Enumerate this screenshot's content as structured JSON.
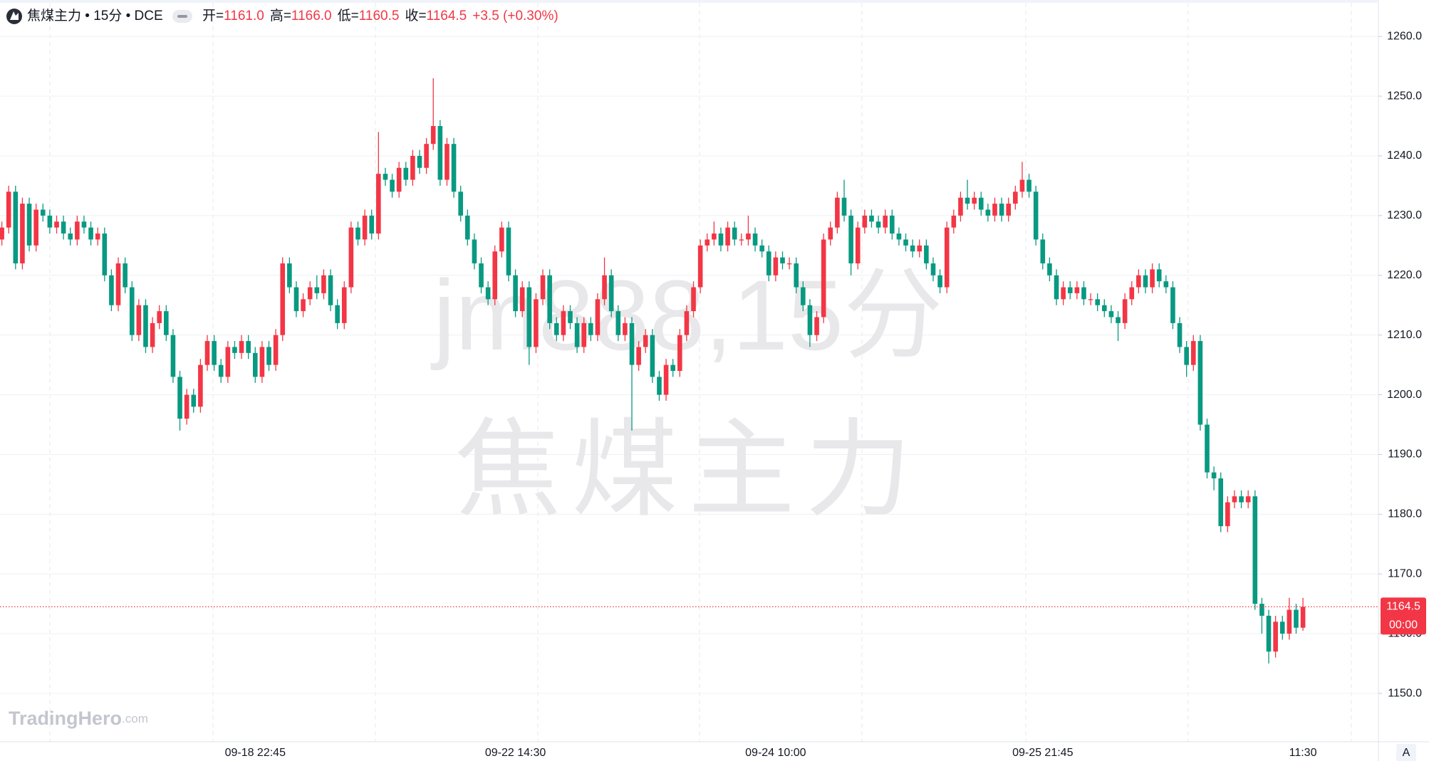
{
  "header": {
    "title": "焦煤主力 • 15分 • DCE",
    "open_label": "开=",
    "open": "1161.0",
    "high_label": "高=",
    "high": "1166.0",
    "low_label": "低=",
    "low": "1160.5",
    "close_label": "收=",
    "close": "1164.5",
    "change": "+3.5 (+0.30%)"
  },
  "watermark": {
    "symbol": "jm888,15分",
    "name": "焦煤主力"
  },
  "brand": {
    "name": "TradingHero",
    "suffix": ".com"
  },
  "scale_button": "A",
  "chart_data": {
    "type": "candlestick",
    "up_color": "#f23645",
    "down_color": "#089981",
    "grid": true,
    "categories": [
      null,
      null,
      null,
      null,
      null,
      null,
      null,
      null,
      null,
      null,
      null,
      null,
      null,
      null,
      null,
      null,
      null,
      null,
      null,
      null,
      null,
      null,
      null,
      null,
      null,
      null,
      null,
      null,
      null,
      null,
      null,
      null,
      null,
      null,
      null,
      null,
      null,
      "09-18 22:45",
      null,
      null,
      null,
      null,
      null,
      null,
      null,
      null,
      null,
      null,
      null,
      null,
      null,
      null,
      null,
      null,
      null,
      null,
      null,
      null,
      null,
      null,
      null,
      null,
      null,
      null,
      null,
      null,
      null,
      null,
      null,
      null,
      null,
      null,
      null,
      null,
      null,
      "09-22 14:30",
      null,
      null,
      null,
      null,
      null,
      null,
      null,
      null,
      null,
      null,
      null,
      null,
      null,
      null,
      null,
      null,
      null,
      null,
      null,
      null,
      null,
      null,
      null,
      null,
      null,
      null,
      null,
      null,
      null,
      null,
      null,
      null,
      null,
      null,
      null,
      null,
      null,
      "09-24 10:00",
      null,
      null,
      null,
      null,
      null,
      null,
      null,
      null,
      null,
      null,
      null,
      null,
      null,
      null,
      null,
      null,
      null,
      null,
      null,
      null,
      null,
      null,
      null,
      null,
      null,
      null,
      null,
      null,
      null,
      null,
      null,
      null,
      null,
      null,
      null,
      null,
      null,
      null,
      "09-25 21:45",
      null,
      null,
      null,
      null,
      null,
      null,
      null,
      null,
      null,
      null,
      null,
      null,
      null,
      null,
      null,
      null,
      null,
      null,
      null,
      null,
      null,
      null,
      null,
      null,
      null,
      null,
      null,
      null,
      null,
      null,
      null,
      null,
      null,
      null,
      null,
      null,
      null,
      "11:30"
    ],
    "open": [
      1226,
      1228,
      1234,
      1222,
      1232,
      1225,
      1231,
      1230,
      1228,
      1229,
      1227,
      1226,
      1229,
      1228,
      1226,
      1227,
      1220,
      1215,
      1222,
      1218,
      1210,
      1215,
      1208,
      1212,
      1214,
      1210,
      1203,
      1196,
      1200,
      1198,
      1205,
      1209,
      1205,
      1203,
      1208,
      1207,
      1209,
      1207,
      1203,
      1208,
      1205,
      1210,
      1222,
      1218,
      1214,
      1216,
      1218,
      1217,
      1220,
      1215,
      1212,
      1218,
      1228,
      1226,
      1230,
      1227,
      1237,
      1236,
      1234,
      1238,
      1236,
      1240,
      1238,
      1242,
      1245,
      1236,
      1242,
      1234,
      1230,
      1226,
      1222,
      1218,
      1216,
      1224,
      1228,
      1220,
      1214,
      1218,
      1208,
      1216,
      1220,
      1212,
      1210,
      1214,
      1212,
      1208,
      1212,
      1210,
      1216,
      1220,
      1214,
      1210,
      1212,
      1205,
      1208,
      1210,
      1203,
      1200,
      1205,
      1204,
      1210,
      1214,
      1218,
      1225,
      1226,
      1227,
      1225,
      1228,
      1226,
      1226,
      1227,
      1225,
      1224,
      1220,
      1223,
      1222,
      1222,
      1218,
      1215,
      1210,
      1213,
      1226,
      1228,
      1233,
      1230,
      1222,
      1228,
      1230,
      1229,
      1228,
      1230,
      1227,
      1226,
      1225,
      1224,
      1225,
      1222,
      1220,
      1218,
      1228,
      1230,
      1233,
      1232,
      1233,
      1231,
      1230,
      1232,
      1230,
      1232,
      1234,
      1236,
      1234,
      1226,
      1222,
      1220,
      1216,
      1218,
      1217,
      1218,
      1216,
      1216,
      1215,
      1214,
      1213,
      1212,
      1216,
      1218,
      1220,
      1218,
      1221,
      1219,
      1218,
      1212,
      1208,
      1205,
      1209,
      1195,
      1187,
      1186,
      1178,
      1182,
      1183,
      1182,
      1183,
      1165,
      1163,
      1157,
      1162,
      1160,
      1164,
      1161
    ],
    "high": [
      1229,
      1235,
      1235,
      1233,
      1233,
      1232,
      1232,
      1231,
      1230,
      1230,
      1228,
      1230,
      1230,
      1229,
      1228,
      1228,
      1221,
      1223,
      1223,
      1219,
      1216,
      1216,
      1213,
      1215,
      1215,
      1211,
      1204,
      1201,
      1201,
      1206,
      1210,
      1210,
      1206,
      1209,
      1209,
      1210,
      1210,
      1208,
      1209,
      1209,
      1211,
      1223,
      1223,
      1219,
      1217,
      1219,
      1220,
      1221,
      1221,
      1216,
      1219,
      1229,
      1229,
      1231,
      1231,
      1244,
      1238,
      1237,
      1239,
      1239,
      1241,
      1241,
      1243,
      1253,
      1246,
      1243,
      1243,
      1235,
      1231,
      1227,
      1223,
      1219,
      1225,
      1229,
      1229,
      1221,
      1219,
      1219,
      1217,
      1221,
      1221,
      1213,
      1215,
      1215,
      1213,
      1213,
      1213,
      1217,
      1223,
      1221,
      1215,
      1213,
      1213,
      1209,
      1211,
      1211,
      1204,
      1206,
      1206,
      1211,
      1215,
      1219,
      1226,
      1227,
      1229,
      1228,
      1229,
      1229,
      1227,
      1230,
      1228,
      1226,
      1225,
      1224,
      1224,
      1223,
      1223,
      1219,
      1216,
      1214,
      1227,
      1229,
      1234,
      1236,
      1231,
      1229,
      1231,
      1231,
      1230,
      1231,
      1231,
      1228,
      1227,
      1226,
      1226,
      1226,
      1223,
      1221,
      1229,
      1231,
      1234,
      1236,
      1234,
      1234,
      1232,
      1233,
      1233,
      1233,
      1235,
      1239,
      1237,
      1235,
      1227,
      1223,
      1221,
      1219,
      1219,
      1219,
      1219,
      1217,
      1217,
      1216,
      1215,
      1214,
      1217,
      1219,
      1221,
      1221,
      1222,
      1222,
      1220,
      1219,
      1213,
      1209,
      1210,
      1210,
      1196,
      1188,
      1187,
      1183,
      1184,
      1184,
      1184,
      1184,
      1166,
      1164,
      1163,
      1163,
      1166,
      1165,
      1166
    ],
    "low": [
      1225,
      1227,
      1221,
      1221,
      1224,
      1224,
      1229,
      1227,
      1227,
      1226,
      1225,
      1225,
      1227,
      1225,
      1225,
      1219,
      1214,
      1214,
      1217,
      1209,
      1209,
      1207,
      1207,
      1211,
      1209,
      1202,
      1194,
      1195,
      1197,
      1197,
      1204,
      1204,
      1202,
      1202,
      1206,
      1206,
      1206,
      1202,
      1202,
      1204,
      1204,
      1209,
      1217,
      1213,
      1213,
      1215,
      1216,
      1216,
      1214,
      1211,
      1211,
      1217,
      1225,
      1225,
      1226,
      1226,
      1235,
      1233,
      1233,
      1235,
      1235,
      1237,
      1237,
      1241,
      1235,
      1235,
      1233,
      1229,
      1225,
      1221,
      1217,
      1215,
      1215,
      1223,
      1219,
      1213,
      1213,
      1205,
      1207,
      1215,
      1211,
      1209,
      1209,
      1211,
      1207,
      1207,
      1209,
      1209,
      1215,
      1213,
      1209,
      1209,
      1194,
      1204,
      1207,
      1202,
      1199,
      1199,
      1203,
      1203,
      1209,
      1213,
      1217,
      1224,
      1225,
      1224,
      1224,
      1225,
      1225,
      1225,
      1224,
      1223,
      1219,
      1219,
      1221,
      1221,
      1217,
      1214,
      1208,
      1209,
      1212,
      1225,
      1227,
      1229,
      1220,
      1221,
      1227,
      1228,
      1227,
      1227,
      1226,
      1225,
      1224,
      1223,
      1223,
      1221,
      1219,
      1217,
      1217,
      1227,
      1229,
      1231,
      1231,
      1230,
      1229,
      1229,
      1229,
      1229,
      1231,
      1233,
      1233,
      1225,
      1221,
      1219,
      1215,
      1215,
      1216,
      1216,
      1215,
      1215,
      1214,
      1213,
      1212,
      1209,
      1211,
      1215,
      1217,
      1217,
      1217,
      1218,
      1217,
      1211,
      1207,
      1203,
      1204,
      1194,
      1186,
      1184,
      1177,
      1177,
      1181,
      1181,
      1181,
      1164,
      1160,
      1155,
      1156,
      1159,
      1159,
      1160,
      1160.5
    ],
    "close": [
      1228,
      1234,
      1222,
      1232,
      1225,
      1231,
      1230,
      1228,
      1229,
      1227,
      1226,
      1229,
      1228,
      1226,
      1227,
      1220,
      1215,
      1222,
      1218,
      1210,
      1215,
      1208,
      1212,
      1214,
      1210,
      1203,
      1196,
      1200,
      1198,
      1205,
      1209,
      1205,
      1203,
      1208,
      1207,
      1209,
      1207,
      1203,
      1208,
      1205,
      1210,
      1222,
      1218,
      1214,
      1216,
      1218,
      1217,
      1220,
      1215,
      1212,
      1218,
      1228,
      1226,
      1230,
      1227,
      1237,
      1236,
      1234,
      1238,
      1236,
      1240,
      1238,
      1242,
      1245,
      1236,
      1242,
      1234,
      1230,
      1226,
      1222,
      1218,
      1216,
      1224,
      1228,
      1220,
      1214,
      1218,
      1208,
      1216,
      1220,
      1212,
      1210,
      1214,
      1212,
      1208,
      1212,
      1210,
      1216,
      1220,
      1214,
      1210,
      1212,
      1205,
      1208,
      1210,
      1203,
      1200,
      1205,
      1204,
      1210,
      1214,
      1218,
      1225,
      1226,
      1227,
      1225,
      1228,
      1226,
      1226,
      1227,
      1225,
      1224,
      1220,
      1223,
      1222,
      1222,
      1218,
      1215,
      1210,
      1213,
      1226,
      1228,
      1233,
      1230,
      1222,
      1228,
      1230,
      1229,
      1228,
      1230,
      1227,
      1226,
      1225,
      1224,
      1225,
      1222,
      1220,
      1218,
      1228,
      1230,
      1233,
      1232,
      1233,
      1231,
      1230,
      1232,
      1230,
      1232,
      1234,
      1236,
      1234,
      1226,
      1222,
      1220,
      1216,
      1218,
      1217,
      1218,
      1216,
      1216,
      1215,
      1214,
      1213,
      1212,
      1216,
      1218,
      1220,
      1218,
      1221,
      1219,
      1218,
      1212,
      1208,
      1205,
      1209,
      1195,
      1187,
      1186,
      1178,
      1182,
      1183,
      1182,
      1183,
      1165,
      1163,
      1157,
      1162,
      1160,
      1164,
      1161,
      1164.5
    ],
    "ylim": [
      1141.9,
      1266.1
    ],
    "yticks": [
      {
        "value": 1150,
        "label": "1150.0"
      },
      {
        "value": 1160,
        "label": "1160.0"
      },
      {
        "value": 1170,
        "label": "1170.0"
      },
      {
        "value": 1180,
        "label": "1180.0"
      },
      {
        "value": 1190,
        "label": "1190.0"
      },
      {
        "value": 1200,
        "label": "1200.0"
      },
      {
        "value": 1210,
        "label": "1210.0"
      },
      {
        "value": 1220,
        "label": "1220.0"
      },
      {
        "value": 1230,
        "label": "1230.0"
      },
      {
        "value": 1240,
        "label": "1240.0"
      },
      {
        "value": 1250,
        "label": "1250.0"
      },
      {
        "value": 1260,
        "label": "1260.0"
      }
    ],
    "last_price": {
      "value": 1164.5,
      "label": "1164.5"
    },
    "countdown": "00:00"
  }
}
